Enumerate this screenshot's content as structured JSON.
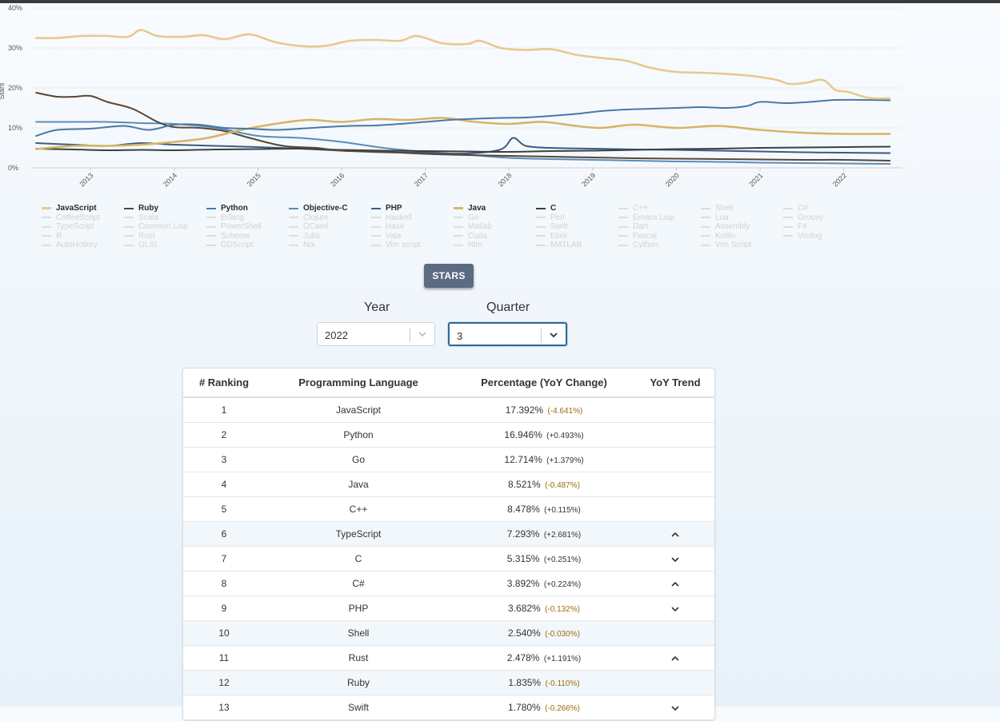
{
  "colors": {
    "JavaScript": "#e8c98a",
    "Ruby": "#5a4632",
    "Python": "#4a78a4",
    "Objective-C": "#5a8cbb",
    "PHP": "#3d5a80",
    "Java": "#d8b466",
    "C": "#3a3f44",
    "inactive": "#dadada",
    "button": "#5a6b82"
  },
  "chart_data": {
    "type": "line",
    "ylabel": "Stars",
    "ylim": [
      0,
      40
    ],
    "yticks": [
      "0%",
      "10%",
      "20%",
      "30%",
      "40%"
    ],
    "xlim": [
      2012.3,
      2022.7
    ],
    "xticks": [
      "2013",
      "2014",
      "2015",
      "2016",
      "2017",
      "2018",
      "2019",
      "2020",
      "2021",
      "2022"
    ],
    "grid": true,
    "series": [
      {
        "name": "JavaScript",
        "x": [
          2012.35,
          2012.6,
          2012.9,
          2013.2,
          2013.45,
          2013.6,
          2013.8,
          2014.1,
          2014.35,
          2014.6,
          2014.9,
          2015.2,
          2015.5,
          2015.8,
          2016.1,
          2016.4,
          2016.7,
          2016.9,
          2017.2,
          2017.5,
          2017.65,
          2017.9,
          2018.2,
          2018.5,
          2018.8,
          2019.1,
          2019.4,
          2019.7,
          2020.0,
          2020.3,
          2020.6,
          2020.9,
          2021.2,
          2021.35,
          2021.55,
          2021.75,
          2021.9,
          2022.05,
          2022.3,
          2022.55
        ],
        "y": [
          32.5,
          32.5,
          33.0,
          33.0,
          32.8,
          34.5,
          33.0,
          32.8,
          33.2,
          32.2,
          33.4,
          31.5,
          30.5,
          30.5,
          31.8,
          32.0,
          31.8,
          33.0,
          31.2,
          31.0,
          31.8,
          30.0,
          29.5,
          29.7,
          28.3,
          27.5,
          26.8,
          25.0,
          24.0,
          23.8,
          23.5,
          23.0,
          22.0,
          21.0,
          21.3,
          22.0,
          19.5,
          19.0,
          17.5,
          17.4
        ]
      },
      {
        "name": "Ruby",
        "x": [
          2012.35,
          2012.6,
          2012.8,
          2013.0,
          2013.2,
          2013.5,
          2013.8,
          2014.0,
          2014.3,
          2014.6,
          2014.9,
          2015.3,
          2015.7,
          2016.0,
          2016.5,
          2017.0,
          2017.5,
          2018.0,
          2018.5,
          2019.0,
          2019.5,
          2020.0,
          2020.5,
          2021.0,
          2021.5,
          2022.0,
          2022.55
        ],
        "y": [
          18.8,
          17.8,
          17.8,
          18.0,
          16.5,
          14.8,
          11.5,
          10.2,
          10.0,
          9.2,
          7.5,
          5.5,
          5.0,
          4.3,
          4.0,
          3.5,
          3.2,
          3.0,
          2.8,
          2.6,
          2.4,
          2.3,
          2.2,
          2.1,
          2.0,
          2.0,
          1.8
        ]
      },
      {
        "name": "Python",
        "x": [
          2012.35,
          2012.6,
          2013.0,
          2013.4,
          2013.7,
          2014.0,
          2014.3,
          2014.6,
          2014.9,
          2015.2,
          2015.5,
          2015.8,
          2016.1,
          2016.4,
          2016.7,
          2017.0,
          2017.3,
          2017.6,
          2017.9,
          2018.2,
          2018.5,
          2018.8,
          2019.1,
          2019.4,
          2019.7,
          2020.0,
          2020.3,
          2020.6,
          2020.85,
          2021.0,
          2021.3,
          2021.6,
          2021.9,
          2022.2,
          2022.55
        ],
        "y": [
          8.0,
          9.5,
          9.8,
          10.5,
          9.5,
          10.8,
          10.8,
          10.0,
          9.8,
          9.5,
          9.8,
          10.2,
          10.5,
          10.6,
          11.0,
          11.5,
          12.0,
          12.3,
          12.5,
          12.6,
          13.0,
          13.5,
          14.2,
          14.6,
          14.8,
          15.0,
          15.2,
          15.0,
          15.5,
          16.5,
          16.2,
          16.5,
          17.0,
          17.0,
          16.9
        ]
      },
      {
        "name": "Objective-C",
        "x": [
          2012.35,
          2012.8,
          2013.2,
          2013.6,
          2014.0,
          2014.5,
          2015.0,
          2015.5,
          2016.0,
          2016.5,
          2017.0,
          2017.5,
          2018.0,
          2018.5,
          2019.0,
          2019.5,
          2020.0,
          2020.5,
          2021.0,
          2021.5,
          2022.0,
          2022.55
        ],
        "y": [
          11.5,
          11.5,
          11.5,
          11.2,
          11.0,
          10.0,
          8.0,
          7.5,
          6.5,
          5.0,
          4.0,
          3.3,
          2.5,
          2.2,
          2.0,
          1.8,
          1.6,
          1.5,
          1.3,
          1.2,
          1.1,
          1.0
        ]
      },
      {
        "name": "PHP",
        "x": [
          2012.35,
          2012.8,
          2013.2,
          2013.6,
          2014.0,
          2014.5,
          2015.0,
          2015.5,
          2016.0,
          2016.5,
          2017.0,
          2017.5,
          2017.9,
          2018.05,
          2018.2,
          2018.5,
          2019.0,
          2019.5,
          2020.0,
          2020.5,
          2021.0,
          2021.5,
          2022.0,
          2022.55
        ],
        "y": [
          6.2,
          5.8,
          5.5,
          6.2,
          5.8,
          5.5,
          5.2,
          4.8,
          4.3,
          3.9,
          3.8,
          3.6,
          4.6,
          7.5,
          5.5,
          5.0,
          4.8,
          4.6,
          4.5,
          4.3,
          4.1,
          3.9,
          3.8,
          3.7
        ]
      },
      {
        "name": "Java",
        "x": [
          2012.35,
          2012.8,
          2013.2,
          2013.6,
          2014.0,
          2014.4,
          2014.8,
          2015.2,
          2015.6,
          2016.0,
          2016.4,
          2016.8,
          2017.2,
          2017.6,
          2018.0,
          2018.4,
          2018.8,
          2019.1,
          2019.5,
          2020.0,
          2020.5,
          2021.0,
          2021.5,
          2022.0,
          2022.55
        ],
        "y": [
          4.7,
          5.5,
          5.5,
          5.8,
          6.5,
          7.5,
          9.5,
          11.0,
          12.0,
          11.5,
          12.2,
          12.0,
          12.5,
          11.5,
          11.0,
          11.5,
          10.5,
          10.0,
          10.8,
          10.0,
          10.5,
          9.5,
          8.8,
          8.5,
          8.5
        ]
      },
      {
        "name": "C",
        "x": [
          2012.35,
          2012.8,
          2013.2,
          2013.6,
          2014.0,
          2014.5,
          2015.0,
          2015.5,
          2016.0,
          2016.5,
          2017.0,
          2017.5,
          2018.0,
          2018.5,
          2019.0,
          2019.5,
          2020.0,
          2020.5,
          2021.0,
          2021.5,
          2022.0,
          2022.55
        ],
        "y": [
          4.8,
          4.6,
          4.4,
          4.5,
          4.4,
          4.6,
          4.7,
          4.8,
          4.5,
          4.3,
          4.2,
          4.1,
          4.0,
          4.2,
          4.3,
          4.5,
          4.7,
          4.8,
          5.0,
          5.1,
          5.2,
          5.3
        ]
      }
    ]
  },
  "legend": {
    "items": [
      {
        "label": "JavaScript",
        "active": true,
        "color": "#e8c98a",
        "wavy": true
      },
      {
        "label": "Ruby",
        "active": true,
        "color": "#5a4632"
      },
      {
        "label": "Python",
        "active": true,
        "color": "#4a78a4"
      },
      {
        "label": "Objective-C",
        "active": true,
        "color": "#5a8cbb"
      },
      {
        "label": "PHP",
        "active": true,
        "color": "#3d5a80"
      },
      {
        "label": "Java",
        "active": true,
        "color": "#d8b466",
        "wavy": true
      },
      {
        "label": "C",
        "active": true,
        "color": "#3a3f44"
      },
      {
        "label": "C++",
        "active": false
      },
      {
        "label": "Shell",
        "active": false
      },
      {
        "label": "C#",
        "active": false
      },
      {
        "label": "CoffeeScript",
        "active": false
      },
      {
        "label": "Scala",
        "active": false
      },
      {
        "label": "Erlang",
        "active": false
      },
      {
        "label": "Clojure",
        "active": false
      },
      {
        "label": "Haskell",
        "active": false
      },
      {
        "label": "Go",
        "active": false
      },
      {
        "label": "Perl",
        "active": false
      },
      {
        "label": "Emacs Lisp",
        "active": false
      },
      {
        "label": "Lua",
        "active": false
      },
      {
        "label": "Groovy",
        "active": false
      },
      {
        "label": "TypeScript",
        "active": false
      },
      {
        "label": "Common Lisp",
        "active": false
      },
      {
        "label": "PowerShell",
        "active": false
      },
      {
        "label": "OCaml",
        "active": false
      },
      {
        "label": "Haxe",
        "active": false
      },
      {
        "label": "Matlab",
        "active": false
      },
      {
        "label": "Swift",
        "active": false
      },
      {
        "label": "Dart",
        "active": false
      },
      {
        "label": "Assembly",
        "active": false
      },
      {
        "label": "F#",
        "active": false
      },
      {
        "label": "R",
        "active": false
      },
      {
        "label": "Rust",
        "active": false
      },
      {
        "label": "Scheme",
        "active": false
      },
      {
        "label": "Julia",
        "active": false
      },
      {
        "label": "Vala",
        "active": false
      },
      {
        "label": "Cuda",
        "active": false
      },
      {
        "label": "Elixir",
        "active": false
      },
      {
        "label": "Pascal",
        "active": false
      },
      {
        "label": "Kotlin",
        "active": false
      },
      {
        "label": "Verilog",
        "active": false
      },
      {
        "label": "AutoHotkey",
        "active": false
      },
      {
        "label": "GLSL",
        "active": false
      },
      {
        "label": "GDScript",
        "active": false
      },
      {
        "label": "Nix",
        "active": false
      },
      {
        "label": "Vim script",
        "active": false
      },
      {
        "label": "Nim",
        "active": false
      },
      {
        "label": "MATLAB",
        "active": false
      },
      {
        "label": "Cython",
        "active": false
      },
      {
        "label": "Vim Script",
        "active": false
      }
    ]
  },
  "controls": {
    "metric_button": "STARS",
    "year_label": "Year",
    "year_value": "2022",
    "quarter_label": "Quarter",
    "quarter_value": "3"
  },
  "table": {
    "headers": [
      "# Ranking",
      "Programming Language",
      "Percentage (YoY Change)",
      "YoY Trend"
    ],
    "rows": [
      {
        "rank": "1",
        "language": "JavaScript",
        "percent": "17.392%",
        "change": "(-4.641%)",
        "trend": ""
      },
      {
        "rank": "2",
        "language": "Python",
        "percent": "16.946%",
        "change": "(+0.493%)",
        "trend": ""
      },
      {
        "rank": "3",
        "language": "Go",
        "percent": "12.714%",
        "change": "(+1.379%)",
        "trend": ""
      },
      {
        "rank": "4",
        "language": "Java",
        "percent": "8.521%",
        "change": "(-0.487%)",
        "trend": ""
      },
      {
        "rank": "5",
        "language": "C++",
        "percent": "8.478%",
        "change": "(+0.115%)",
        "trend": ""
      },
      {
        "rank": "6",
        "language": "TypeScript",
        "percent": "7.293%",
        "change": "(+2.681%)",
        "trend": "up"
      },
      {
        "rank": "7",
        "language": "C",
        "percent": "5.315%",
        "change": "(+0.251%)",
        "trend": "down"
      },
      {
        "rank": "8",
        "language": "C#",
        "percent": "3.892%",
        "change": "(+0.224%)",
        "trend": "up"
      },
      {
        "rank": "9",
        "language": "PHP",
        "percent": "3.682%",
        "change": "(-0.132%)",
        "trend": "down"
      },
      {
        "rank": "10",
        "language": "Shell",
        "percent": "2.540%",
        "change": "(-0.030%)",
        "trend": ""
      },
      {
        "rank": "11",
        "language": "Rust",
        "percent": "2.478%",
        "change": "(+1.191%)",
        "trend": "up"
      },
      {
        "rank": "12",
        "language": "Ruby",
        "percent": "1.835%",
        "change": "(-0.110%)",
        "trend": ""
      },
      {
        "rank": "13",
        "language": "Swift",
        "percent": "1.780%",
        "change": "(-0.266%)",
        "trend": "down"
      }
    ]
  }
}
